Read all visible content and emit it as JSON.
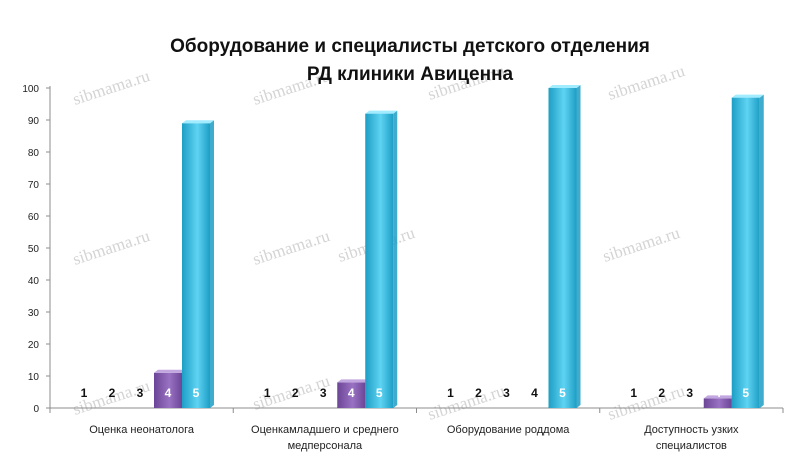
{
  "chart_data": {
    "type": "bar",
    "title_lines": [
      "Оборудование и специалисты детского отделения",
      "РД клиники Авиценна"
    ],
    "categories": [
      [
        "Оценка неонатолога"
      ],
      [
        "Оценкамладшего и среднего",
        "медперсонала"
      ],
      [
        "Оборудование роддома"
      ],
      [
        "Доступность узких",
        "специалистов"
      ]
    ],
    "series": [
      {
        "label": "1",
        "values": [
          0,
          0,
          0,
          0
        ]
      },
      {
        "label": "2",
        "values": [
          0,
          0,
          0,
          0
        ]
      },
      {
        "label": "3",
        "values": [
          0,
          0,
          0,
          0
        ]
      },
      {
        "label": "4",
        "values": [
          11,
          8,
          0,
          3
        ]
      },
      {
        "label": "5",
        "values": [
          89,
          92,
          100,
          97
        ]
      }
    ],
    "ylim": [
      0,
      100
    ],
    "yticks": [
      0,
      10,
      20,
      30,
      40,
      50,
      60,
      70,
      80,
      90,
      100
    ],
    "grid": false,
    "legend": "none",
    "colors": {
      "series4_light": "#9a72c4",
      "series4_dark": "#6b4596",
      "series5_light": "#5fd3f2",
      "series5_dark": "#1d9ec5",
      "axis": "#8c8c8c"
    },
    "watermark": "sibmama.ru"
  }
}
